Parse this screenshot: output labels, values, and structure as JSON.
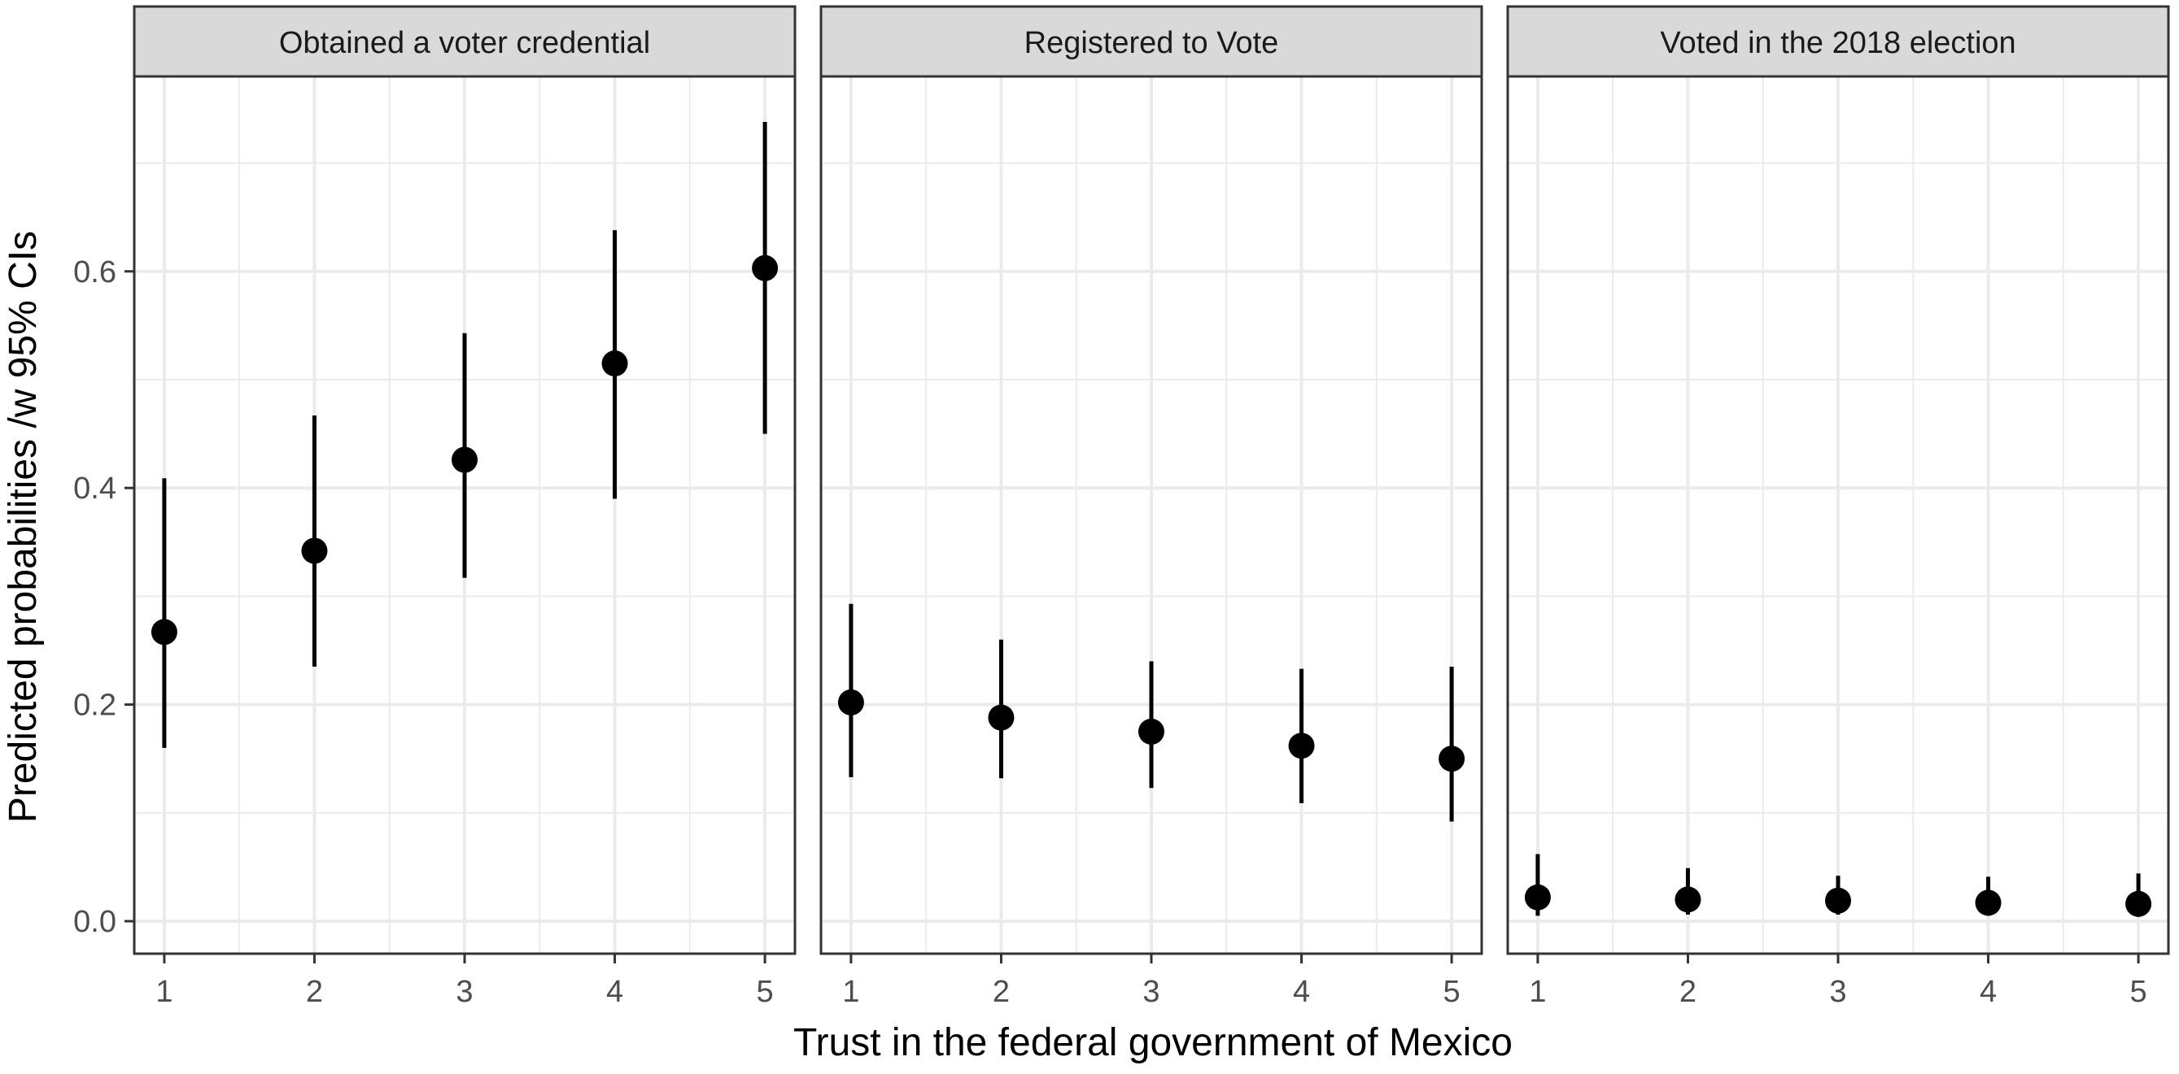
{
  "chart_data": {
    "type": "scatter",
    "style": "point-range, faceted",
    "ylabel": "Predicted probabilities /w 95% CIs",
    "xlabel": "Trust in the federal government of Mexico",
    "x": [
      1,
      2,
      3,
      4,
      5
    ],
    "x_tick_labels": [
      "1",
      "2",
      "3",
      "4",
      "5"
    ],
    "xlim": [
      0.8,
      5.2
    ],
    "ylim": [
      -0.03,
      0.78
    ],
    "y_ticks": [
      0.0,
      0.2,
      0.4,
      0.6
    ],
    "y_tick_labels": [
      "0.0",
      "0.2",
      "0.4",
      "0.6"
    ],
    "grid": true,
    "colors": {
      "point": "#000000",
      "strip_fill": "#d9d9d9",
      "strip_border": "#333333",
      "grid": "#ebebeb",
      "panel_border": "#333333",
      "axis_text": "#4d4d4d"
    },
    "panels": [
      {
        "title": "Obtained a voter credential",
        "estimates": [
          0.267,
          0.342,
          0.426,
          0.515,
          0.603
        ],
        "ci_lower": [
          0.16,
          0.235,
          0.317,
          0.39,
          0.45
        ],
        "ci_upper": [
          0.409,
          0.467,
          0.543,
          0.638,
          0.738
        ]
      },
      {
        "title": "Registered to Vote",
        "estimates": [
          0.202,
          0.188,
          0.175,
          0.162,
          0.15
        ],
        "ci_lower": [
          0.133,
          0.132,
          0.123,
          0.109,
          0.092
        ],
        "ci_upper": [
          0.293,
          0.26,
          0.24,
          0.233,
          0.235
        ]
      },
      {
        "title": "Voted in the 2018 election",
        "estimates": [
          0.022,
          0.02,
          0.019,
          0.017,
          0.016
        ],
        "ci_lower": [
          0.005,
          0.006,
          0.006,
          0.005,
          0.004
        ],
        "ci_upper": [
          0.062,
          0.049,
          0.042,
          0.041,
          0.044
        ]
      }
    ]
  }
}
